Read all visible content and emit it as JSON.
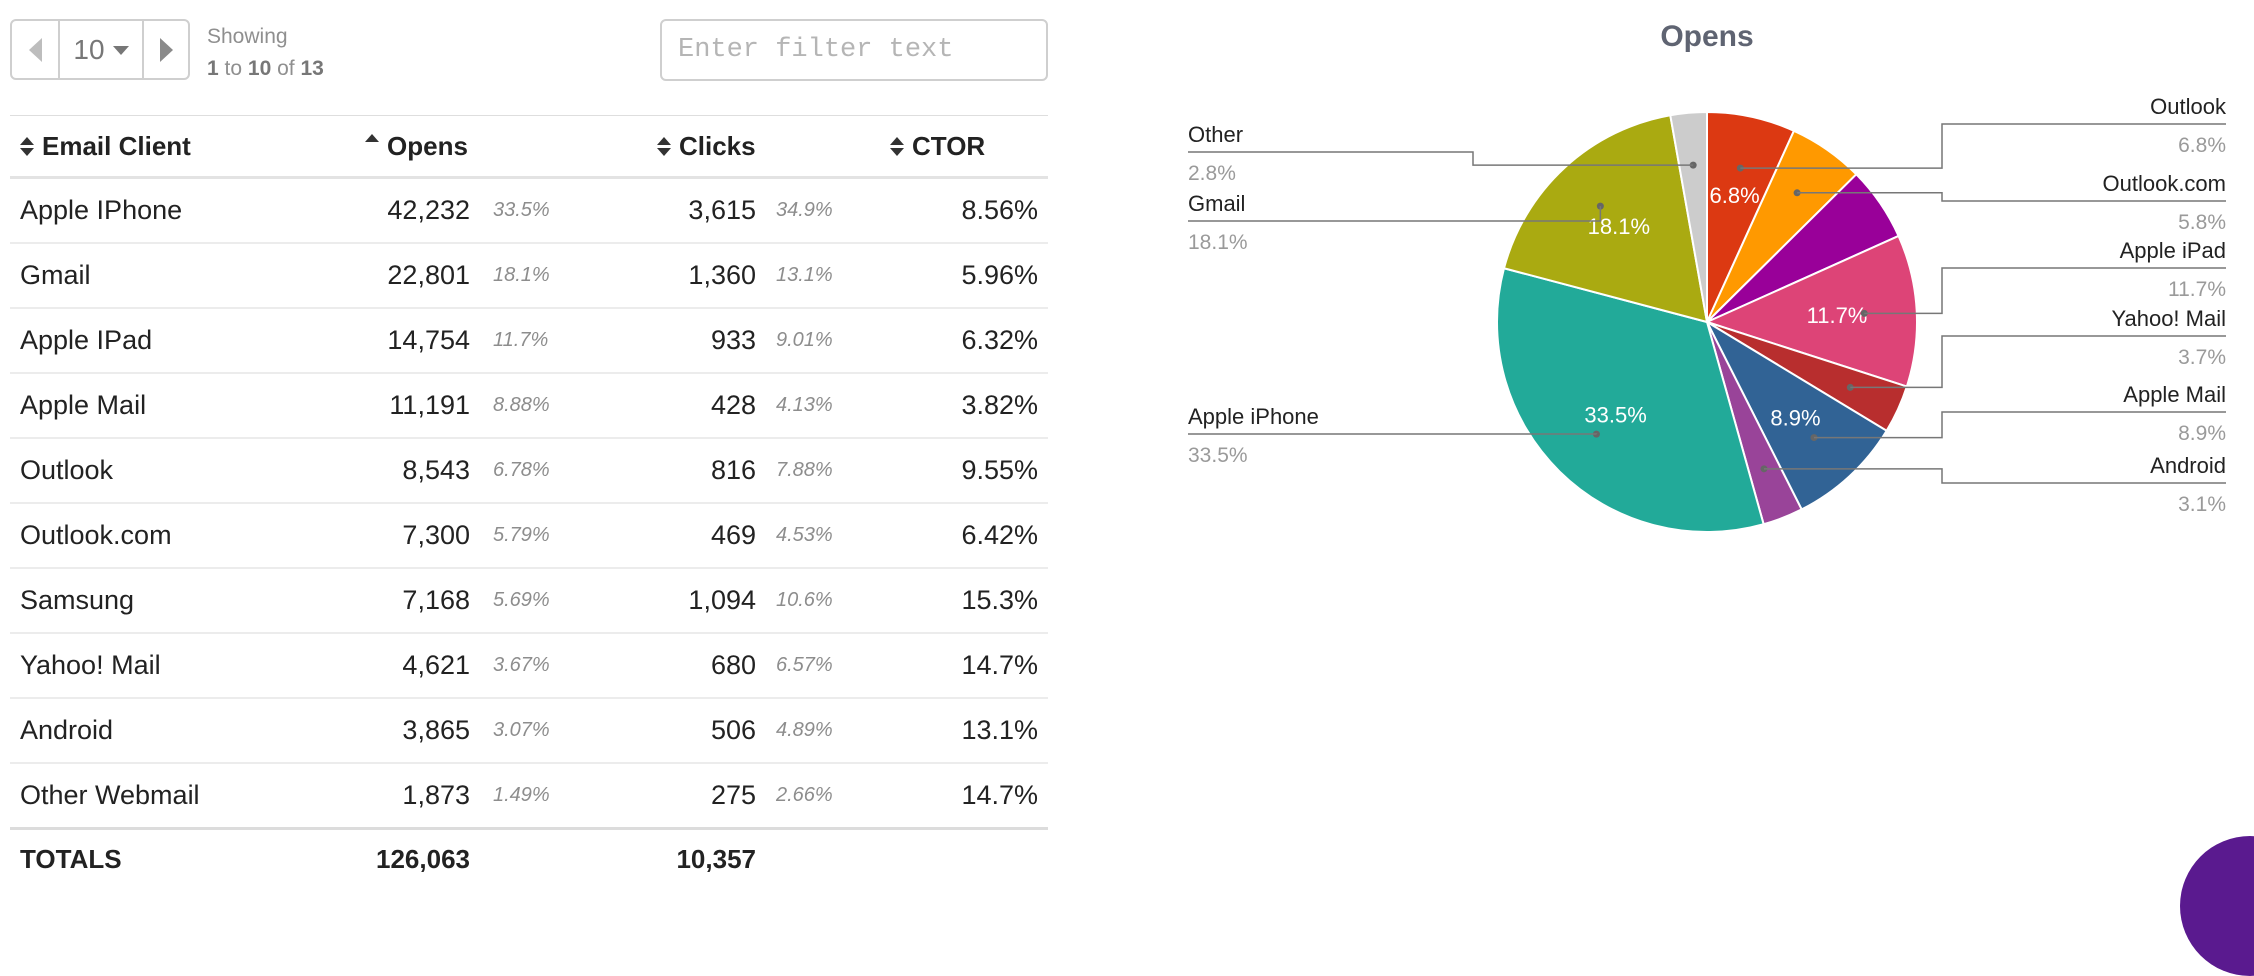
{
  "pager": {
    "page_size": "10",
    "showing_label": "Showing",
    "range_from": "1",
    "to_word": "to",
    "range_to": "10",
    "of_word": "of",
    "total": "13",
    "prev_icon": "chevron-left-icon",
    "next_icon": "chevron-right-icon"
  },
  "filter": {
    "placeholder": "Enter filter text",
    "value": ""
  },
  "table": {
    "columns": [
      "Email Client",
      "Opens",
      "Clicks",
      "CTOR"
    ],
    "rows": [
      {
        "client": "Apple IPhone",
        "opens": "42,232",
        "opens_pct": "33.5%",
        "clicks": "3,615",
        "clicks_pct": "34.9%",
        "ctor": "8.56%"
      },
      {
        "client": "Gmail",
        "opens": "22,801",
        "opens_pct": "18.1%",
        "clicks": "1,360",
        "clicks_pct": "13.1%",
        "ctor": "5.96%"
      },
      {
        "client": "Apple IPad",
        "opens": "14,754",
        "opens_pct": "11.7%",
        "clicks": "933",
        "clicks_pct": "9.01%",
        "ctor": "6.32%"
      },
      {
        "client": "Apple Mail",
        "opens": "11,191",
        "opens_pct": "8.88%",
        "clicks": "428",
        "clicks_pct": "4.13%",
        "ctor": "3.82%"
      },
      {
        "client": "Outlook",
        "opens": "8,543",
        "opens_pct": "6.78%",
        "clicks": "816",
        "clicks_pct": "7.88%",
        "ctor": "9.55%"
      },
      {
        "client": "Outlook.com",
        "opens": "7,300",
        "opens_pct": "5.79%",
        "clicks": "469",
        "clicks_pct": "4.53%",
        "ctor": "6.42%"
      },
      {
        "client": "Samsung",
        "opens": "7,168",
        "opens_pct": "5.69%",
        "clicks": "1,094",
        "clicks_pct": "10.6%",
        "ctor": "15.3%"
      },
      {
        "client": "Yahoo! Mail",
        "opens": "4,621",
        "opens_pct": "3.67%",
        "clicks": "680",
        "clicks_pct": "6.57%",
        "ctor": "14.7%"
      },
      {
        "client": "Android",
        "opens": "3,865",
        "opens_pct": "3.07%",
        "clicks": "506",
        "clicks_pct": "4.89%",
        "ctor": "13.1%"
      },
      {
        "client": "Other Webmail",
        "opens": "1,873",
        "opens_pct": "1.49%",
        "clicks": "275",
        "clicks_pct": "2.66%",
        "ctor": "14.7%"
      }
    ],
    "totals": {
      "label": "TOTALS",
      "opens": "126,063",
      "clicks": "10,357"
    }
  },
  "chart_data": {
    "type": "pie",
    "title": "Opens",
    "slices": [
      {
        "name": "Outlook",
        "value": 6.8,
        "label": "6.8%",
        "color": "#dc3912",
        "inner_label": "6.8%"
      },
      {
        "name": "Outlook.com",
        "value": 5.8,
        "label": "5.8%",
        "color": "#ff9900",
        "inner_label": ""
      },
      {
        "name": "",
        "value": 5.7,
        "label": "",
        "color": "#990099",
        "inner_label": ""
      },
      {
        "name": "Apple iPad",
        "value": 11.7,
        "label": "11.7%",
        "color": "#dd4477",
        "inner_label": "11.7%"
      },
      {
        "name": "Yahoo! Mail",
        "value": 3.7,
        "label": "3.7%",
        "color": "#b82e2e",
        "inner_label": ""
      },
      {
        "name": "Apple Mail",
        "value": 8.9,
        "label": "8.9%",
        "color": "#316395",
        "inner_label": "8.9%"
      },
      {
        "name": "Android",
        "value": 3.1,
        "label": "3.1%",
        "color": "#994499",
        "inner_label": ""
      },
      {
        "name": "Apple iPhone",
        "value": 33.5,
        "label": "33.5%",
        "color": "#22aa99",
        "inner_label": "33.5%"
      },
      {
        "name": "Gmail",
        "value": 18.1,
        "label": "18.1%",
        "color": "#aaaa11",
        "inner_label": "18.1%"
      },
      {
        "name": "Other",
        "value": 2.8,
        "label": "2.8%",
        "color": "#cccccc",
        "inner_label": ""
      }
    ],
    "legend": "callout labels left and right"
  }
}
